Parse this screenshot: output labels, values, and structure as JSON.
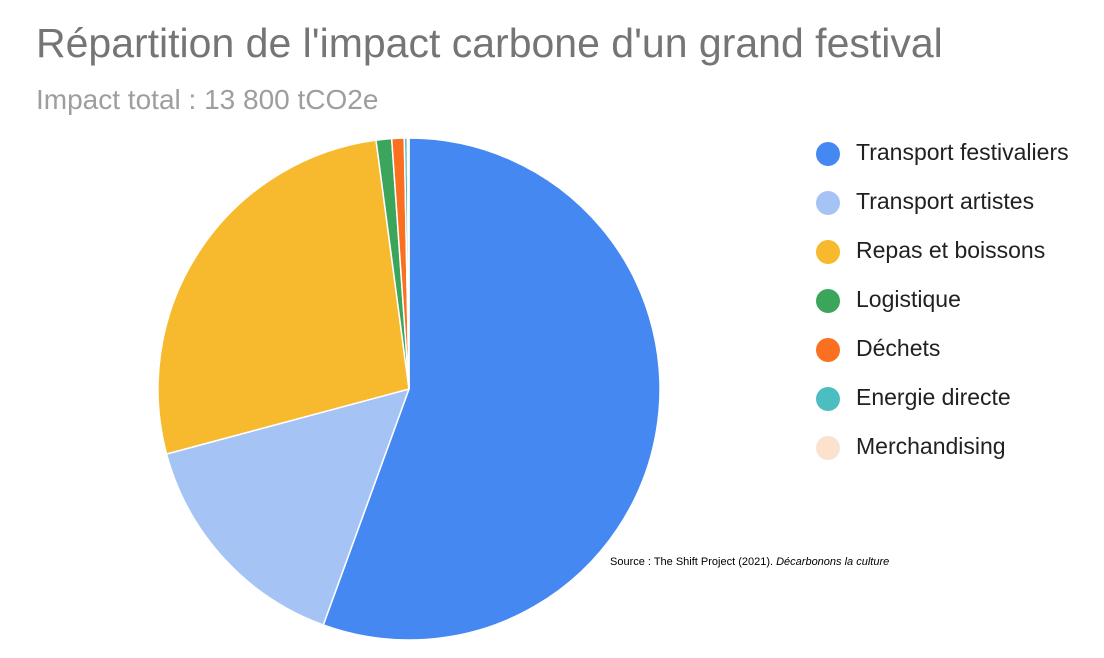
{
  "chart_data": {
    "type": "pie",
    "title": "Répartition de l'impact carbone d'un grand festival",
    "subtitle": "Impact total : 13 800 tCO2e",
    "categories": [
      "Transport festivaliers",
      "Transport artistes",
      "Repas et boissons",
      "Logistique",
      "Déchets",
      "Energie directe",
      "Merchandising"
    ],
    "values": [
      55.6,
      15.3,
      27.1,
      1.0,
      0.8,
      0.2,
      0.1
    ],
    "colors": [
      "#4688f1",
      "#a5c3f4",
      "#f7b92d",
      "#3ca55c",
      "#fa7020",
      "#4cbec2",
      "#fbe2cf"
    ],
    "legend_position": "right",
    "source_text": "Source : The Shift Project (2021). ",
    "source_title": "Décarbonons la culture"
  }
}
